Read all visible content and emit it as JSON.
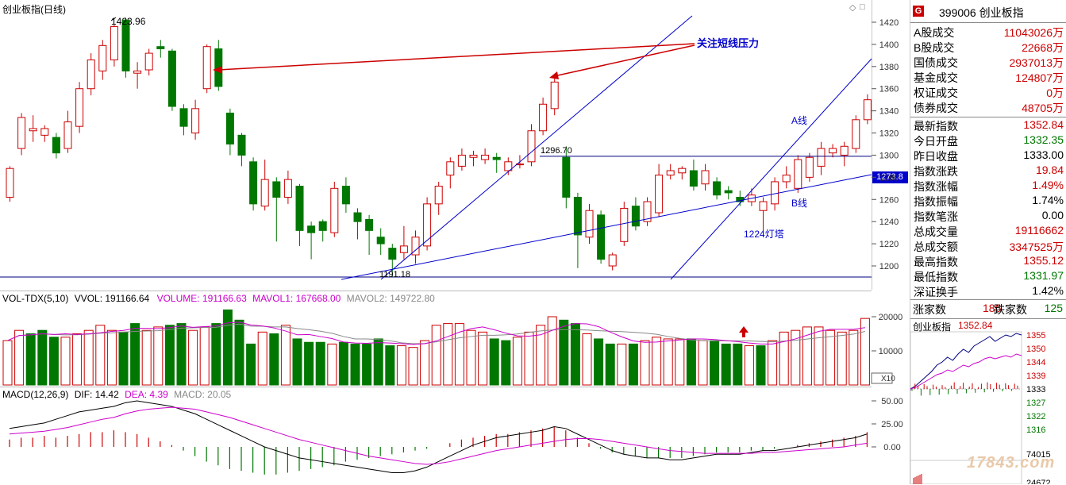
{
  "main": {
    "title": "创业板指(日线)",
    "max_label": "1423.96",
    "min_label": "1191.18",
    "level_label": "1296.70",
    "current_price_tag": "1273.8",
    "annotation_pressure": "关注短线压力",
    "annotation_a": "A线",
    "annotation_b": "B线",
    "annotation_tower": "1224灯塔",
    "y_ticks": [
      "1420",
      "1400",
      "1380",
      "1360",
      "1340",
      "1320",
      "1300",
      "1280",
      "1260",
      "1240",
      "1220",
      "1200"
    ],
    "window_buttons": [
      "◇",
      "□"
    ]
  },
  "vol": {
    "title_name": "VOL-TDX(5,10)",
    "vvol": "VVOL: 191166.64",
    "volume": "VOLUME: 191166.63",
    "mavol1": "MAVOL1: 167668.00",
    "mavol2": "MAVOL2: 149722.80",
    "y_ticks": [
      "20000",
      "10000"
    ],
    "unit": "X10"
  },
  "macd": {
    "title_name": "MACD(12,26,9)",
    "dif": "DIF: 14.42",
    "dea": "DEA: 4.39",
    "macd": "MACD: 20.05",
    "y_ticks": [
      "50.00",
      "25.00",
      "0.00"
    ]
  },
  "quote": {
    "badge": "G",
    "code_name": "399006 创业板指",
    "rows": [
      {
        "label": "A股成交",
        "value": "11043026万",
        "color": "#cc0000"
      },
      {
        "label": "B股成交",
        "value": "22668万",
        "color": "#cc0000"
      },
      {
        "label": "国债成交",
        "value": "2937013万",
        "color": "#cc0000"
      },
      {
        "label": "基金成交",
        "value": "124807万",
        "color": "#cc0000"
      },
      {
        "label": "权证成交",
        "value": "0万",
        "color": "#cc0000"
      },
      {
        "label": "债券成交",
        "value": "48705万",
        "color": "#cc0000"
      }
    ],
    "rows2": [
      {
        "label": "最新指数",
        "value": "1352.84",
        "color": "#cc0000"
      },
      {
        "label": "今日开盘",
        "value": "1332.35",
        "color": "#007700"
      },
      {
        "label": "昨日收盘",
        "value": "1333.00",
        "color": "#000000"
      },
      {
        "label": "指数涨跌",
        "value": "19.84",
        "color": "#cc0000"
      },
      {
        "label": "指数涨幅",
        "value": "1.49%",
        "color": "#cc0000"
      },
      {
        "label": "指数振幅",
        "value": "1.74%",
        "color": "#000000"
      },
      {
        "label": "指数笔涨",
        "value": "0.00",
        "color": "#000000"
      },
      {
        "label": "总成交量",
        "value": "19116662",
        "color": "#cc0000"
      },
      {
        "label": "总成交额",
        "value": "3347525万",
        "color": "#cc0000"
      },
      {
        "label": "最高指数",
        "value": "1355.12",
        "color": "#cc0000"
      },
      {
        "label": "最低指数",
        "value": "1331.97",
        "color": "#007700"
      },
      {
        "label": "深证换手",
        "value": "1.42%",
        "color": "#000000"
      }
    ],
    "breadth": {
      "up_label": "涨家数",
      "up_value": "186",
      "down_label": "跌家数",
      "down_value": "125"
    },
    "mini": {
      "title": "创业板指",
      "price": "1352.84",
      "y_ticks": [
        "1355",
        "1350",
        "1344",
        "1339",
        "1333",
        "1327",
        "1322",
        "1316"
      ],
      "vol_tick1": "74015",
      "vol_tick2": "24672"
    }
  },
  "watermark": "17843.com",
  "colors": {
    "up": "#cc0000",
    "down": "#007700",
    "dif": "#000000",
    "dea": "#cc00cc",
    "line": "#0000cc"
  }
}
